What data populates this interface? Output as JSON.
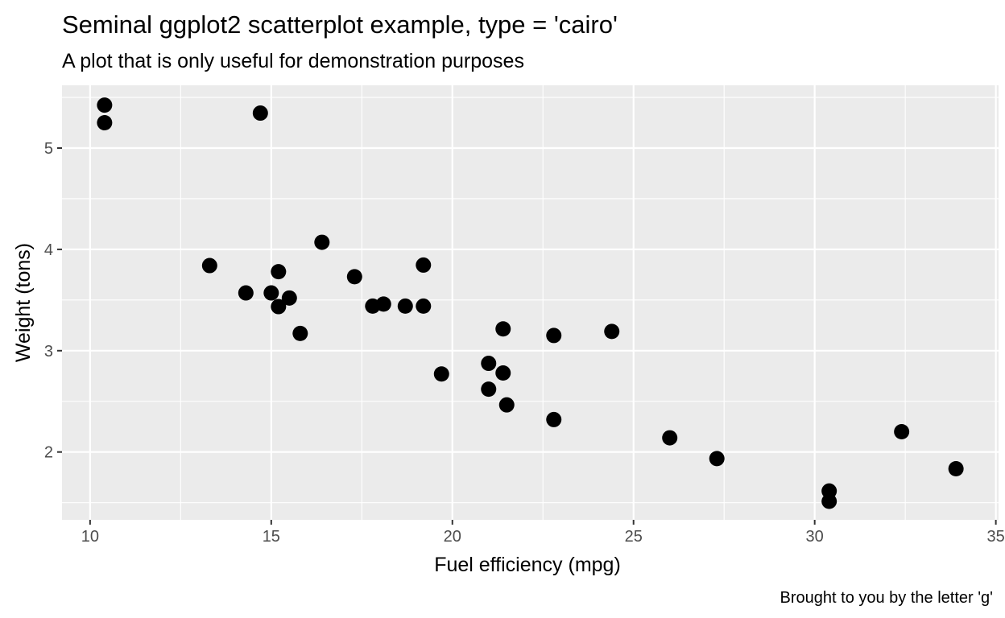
{
  "chart_data": {
    "type": "scatter",
    "title": "Seminal ggplot2 scatterplot example, type = 'cairo'",
    "subtitle": "A plot that is only useful for demonstration purposes",
    "xlabel": "Fuel efficiency (mpg)",
    "ylabel": "Weight (tons)",
    "caption": "Brought to you by the letter 'g'",
    "xlim": [
      9.225,
      35.075
    ],
    "ylim": [
      1.3305,
      5.6195
    ],
    "x_ticks": [
      10,
      15,
      20,
      25,
      30,
      35
    ],
    "x_tick_labels": [
      "10",
      "15",
      "20",
      "25",
      "30",
      "35"
    ],
    "y_ticks": [
      2,
      3,
      4,
      5
    ],
    "y_tick_labels": [
      "2",
      "3",
      "4",
      "5"
    ],
    "grid": true,
    "colors": {
      "panel": "#ebebeb",
      "grid": "#ffffff",
      "point": "#000000",
      "axis_text": "#4d4d4d",
      "text": "#000000"
    },
    "points": [
      {
        "x": 21.0,
        "y": 2.62
      },
      {
        "x": 21.0,
        "y": 2.875
      },
      {
        "x": 22.8,
        "y": 2.32
      },
      {
        "x": 21.4,
        "y": 3.215
      },
      {
        "x": 18.7,
        "y": 3.44
      },
      {
        "x": 18.1,
        "y": 3.46
      },
      {
        "x": 14.3,
        "y": 3.57
      },
      {
        "x": 24.4,
        "y": 3.19
      },
      {
        "x": 22.8,
        "y": 3.15
      },
      {
        "x": 19.2,
        "y": 3.44
      },
      {
        "x": 17.8,
        "y": 3.44
      },
      {
        "x": 16.4,
        "y": 4.07
      },
      {
        "x": 17.3,
        "y": 3.73
      },
      {
        "x": 15.2,
        "y": 3.78
      },
      {
        "x": 10.4,
        "y": 5.25
      },
      {
        "x": 10.4,
        "y": 5.424
      },
      {
        "x": 14.7,
        "y": 5.345
      },
      {
        "x": 32.4,
        "y": 2.2
      },
      {
        "x": 30.4,
        "y": 1.615
      },
      {
        "x": 33.9,
        "y": 1.835
      },
      {
        "x": 21.5,
        "y": 2.465
      },
      {
        "x": 15.5,
        "y": 3.52
      },
      {
        "x": 15.2,
        "y": 3.435
      },
      {
        "x": 13.3,
        "y": 3.84
      },
      {
        "x": 19.2,
        "y": 3.845
      },
      {
        "x": 27.3,
        "y": 1.935
      },
      {
        "x": 26.0,
        "y": 2.14
      },
      {
        "x": 30.4,
        "y": 1.513
      },
      {
        "x": 15.8,
        "y": 3.17
      },
      {
        "x": 19.7,
        "y": 2.77
      },
      {
        "x": 15.0,
        "y": 3.57
      },
      {
        "x": 21.4,
        "y": 2.78
      }
    ]
  }
}
